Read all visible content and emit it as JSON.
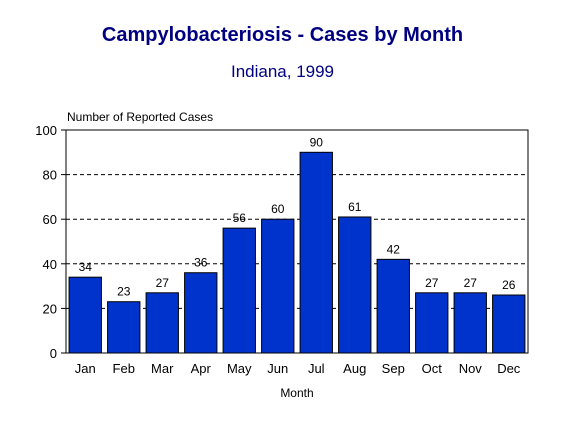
{
  "chart_data": {
    "type": "bar",
    "title": "Campylobacteriosis - Cases by Month",
    "subtitle": "Indiana, 1999",
    "ylabel": "Number of Reported Cases",
    "xlabel": "Month",
    "categories": [
      "Jan",
      "Feb",
      "Mar",
      "Apr",
      "May",
      "Jun",
      "Jul",
      "Aug",
      "Sep",
      "Oct",
      "Nov",
      "Dec"
    ],
    "values": [
      34,
      23,
      27,
      36,
      56,
      60,
      90,
      61,
      42,
      27,
      27,
      26
    ],
    "ylim": [
      0,
      100
    ],
    "yticks": [
      0,
      20,
      40,
      60,
      80,
      100
    ],
    "grid": true,
    "grid_style": "dashed",
    "bar_color": "#0033cc",
    "title_color": "#000080"
  }
}
